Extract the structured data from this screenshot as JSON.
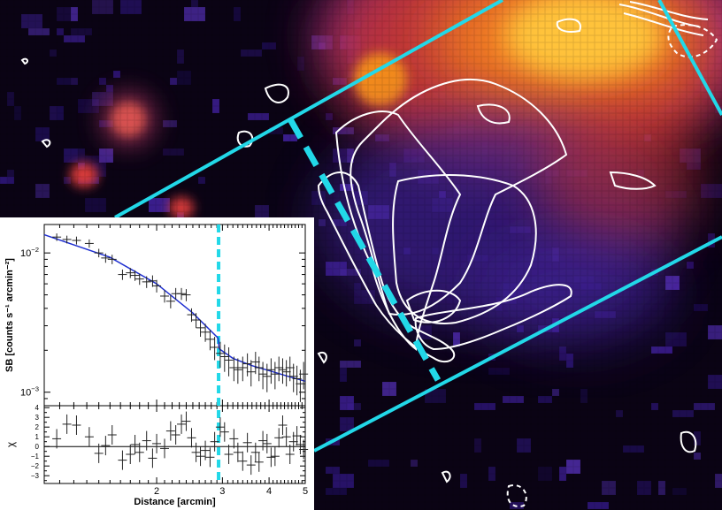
{
  "colors": {
    "accent": "#22d8e8",
    "model": "#1f2fd0",
    "data": "#222222"
  },
  "chart_data": {
    "type": "scatter",
    "image_background": "X-ray surface brightness map with radio contours and region overlay",
    "main_panel": {
      "ylabel": "SB [counts s⁻¹ arcmin⁻²]",
      "yscale": "log",
      "ylim": [
        0.0008,
        0.016
      ],
      "yticks": [
        {
          "value": 0.01,
          "label": "10⁻²"
        },
        {
          "value": 0.001,
          "label": "10⁻³"
        }
      ],
      "xlim": [
        1.0,
        5.0
      ],
      "edge_x": 2.93,
      "data": [
        {
          "x": 1.08,
          "y": 0.013,
          "e": 0.0008
        },
        {
          "x": 1.15,
          "y": 0.0125,
          "e": 0.0008
        },
        {
          "x": 1.22,
          "y": 0.0123,
          "e": 0.0008
        },
        {
          "x": 1.32,
          "y": 0.0117,
          "e": 0.0008
        },
        {
          "x": 1.4,
          "y": 0.01,
          "e": 0.0007
        },
        {
          "x": 1.46,
          "y": 0.0092,
          "e": 0.0007
        },
        {
          "x": 1.52,
          "y": 0.009,
          "e": 0.0007
        },
        {
          "x": 1.62,
          "y": 0.007,
          "e": 0.0006
        },
        {
          "x": 1.7,
          "y": 0.0072,
          "e": 0.0006
        },
        {
          "x": 1.75,
          "y": 0.0069,
          "e": 0.0006
        },
        {
          "x": 1.8,
          "y": 0.0065,
          "e": 0.0006
        },
        {
          "x": 1.88,
          "y": 0.0062,
          "e": 0.0006
        },
        {
          "x": 1.95,
          "y": 0.0063,
          "e": 0.0006
        },
        {
          "x": 2.0,
          "y": 0.0058,
          "e": 0.0006
        },
        {
          "x": 2.1,
          "y": 0.0049,
          "e": 0.0005
        },
        {
          "x": 2.18,
          "y": 0.0045,
          "e": 0.0005
        },
        {
          "x": 2.25,
          "y": 0.0051,
          "e": 0.0005
        },
        {
          "x": 2.33,
          "y": 0.0051,
          "e": 0.0005
        },
        {
          "x": 2.4,
          "y": 0.005,
          "e": 0.0005
        },
        {
          "x": 2.48,
          "y": 0.0036,
          "e": 0.0004
        },
        {
          "x": 2.55,
          "y": 0.0033,
          "e": 0.0004
        },
        {
          "x": 2.62,
          "y": 0.0029,
          "e": 0.0004
        },
        {
          "x": 2.7,
          "y": 0.0027,
          "e": 0.0004
        },
        {
          "x": 2.78,
          "y": 0.0024,
          "e": 0.0004
        },
        {
          "x": 2.86,
          "y": 0.0021,
          "e": 0.0004
        },
        {
          "x": 2.96,
          "y": 0.0019,
          "e": 0.0004
        },
        {
          "x": 3.04,
          "y": 0.0018,
          "e": 0.0004
        },
        {
          "x": 3.12,
          "y": 0.0017,
          "e": 0.0004
        },
        {
          "x": 3.22,
          "y": 0.0015,
          "e": 0.0003
        },
        {
          "x": 3.3,
          "y": 0.00145,
          "e": 0.0003
        },
        {
          "x": 3.4,
          "y": 0.0015,
          "e": 0.0003
        },
        {
          "x": 3.5,
          "y": 0.0016,
          "e": 0.0003
        },
        {
          "x": 3.58,
          "y": 0.0014,
          "e": 0.0003
        },
        {
          "x": 3.68,
          "y": 0.00165,
          "e": 0.0003
        },
        {
          "x": 3.76,
          "y": 0.0015,
          "e": 0.0003
        },
        {
          "x": 3.85,
          "y": 0.00135,
          "e": 0.0003
        },
        {
          "x": 3.95,
          "y": 0.0013,
          "e": 0.0003
        },
        {
          "x": 4.05,
          "y": 0.00145,
          "e": 0.0003
        },
        {
          "x": 4.15,
          "y": 0.00135,
          "e": 0.0003
        },
        {
          "x": 4.25,
          "y": 0.0015,
          "e": 0.0003
        },
        {
          "x": 4.35,
          "y": 0.00145,
          "e": 0.0003
        },
        {
          "x": 4.45,
          "y": 0.0014,
          "e": 0.0003
        },
        {
          "x": 4.55,
          "y": 0.0015,
          "e": 0.0003
        },
        {
          "x": 4.65,
          "y": 0.0013,
          "e": 0.0003
        },
        {
          "x": 4.75,
          "y": 0.00125,
          "e": 0.0003
        },
        {
          "x": 4.85,
          "y": 0.00115,
          "e": 0.0003
        },
        {
          "x": 4.95,
          "y": 0.00135,
          "e": 0.0003
        }
      ],
      "model": [
        {
          "x": 1.0,
          "y": 0.0135
        },
        {
          "x": 1.5,
          "y": 0.0093
        },
        {
          "x": 2.0,
          "y": 0.006
        },
        {
          "x": 2.5,
          "y": 0.0037
        },
        {
          "x": 2.92,
          "y": 0.00245
        },
        {
          "x": 2.94,
          "y": 0.00205
        },
        {
          "x": 3.2,
          "y": 0.00175
        },
        {
          "x": 3.6,
          "y": 0.00155
        },
        {
          "x": 4.0,
          "y": 0.00143
        },
        {
          "x": 4.5,
          "y": 0.0013
        },
        {
          "x": 5.0,
          "y": 0.0012
        }
      ]
    },
    "residual_panel": {
      "ylabel": "χ",
      "ylim": [
        -3.8,
        4.2
      ],
      "yticks": [
        {
          "value": 4,
          "label": "4"
        },
        {
          "value": 3,
          "label": "3"
        },
        {
          "value": 2,
          "label": "2"
        },
        {
          "value": 1,
          "label": "1"
        },
        {
          "value": 0,
          "label": "0"
        },
        {
          "value": -1,
          "label": "−1"
        },
        {
          "value": -2,
          "label": "−2"
        },
        {
          "value": -3,
          "label": "−3"
        }
      ],
      "xlabel": "Distance [arcmin]",
      "xticks": [
        {
          "value": 2,
          "label": "2"
        },
        {
          "value": 3,
          "label": "3"
        },
        {
          "value": 4,
          "label": "4"
        },
        {
          "value": 5,
          "label": "5"
        }
      ],
      "residuals": [
        {
          "x": 1.08,
          "y": 0.8
        },
        {
          "x": 1.15,
          "y": 2.3
        },
        {
          "x": 1.22,
          "y": 2.2
        },
        {
          "x": 1.32,
          "y": 1.0
        },
        {
          "x": 1.4,
          "y": -0.7
        },
        {
          "x": 1.46,
          "y": 0.1
        },
        {
          "x": 1.52,
          "y": 1.2
        },
        {
          "x": 1.62,
          "y": -1.4
        },
        {
          "x": 1.7,
          "y": -0.8
        },
        {
          "x": 1.75,
          "y": 0.2
        },
        {
          "x": 1.8,
          "y": -0.6
        },
        {
          "x": 1.88,
          "y": 0.6
        },
        {
          "x": 1.95,
          "y": -1.2
        },
        {
          "x": 2.0,
          "y": 0.3
        },
        {
          "x": 2.1,
          "y": -0.2
        },
        {
          "x": 2.18,
          "y": 1.6
        },
        {
          "x": 2.25,
          "y": 1.2
        },
        {
          "x": 2.33,
          "y": 2.3
        },
        {
          "x": 2.4,
          "y": 2.6
        },
        {
          "x": 2.48,
          "y": 0.9
        },
        {
          "x": 2.55,
          "y": -0.6
        },
        {
          "x": 2.62,
          "y": -1.0
        },
        {
          "x": 2.7,
          "y": -0.4
        },
        {
          "x": 2.78,
          "y": -1.1
        },
        {
          "x": 2.86,
          "y": 0.5
        },
        {
          "x": 2.96,
          "y": 2.0
        },
        {
          "x": 3.04,
          "y": 1.5
        },
        {
          "x": 3.12,
          "y": -0.8
        },
        {
          "x": 3.22,
          "y": 0.8
        },
        {
          "x": 3.3,
          "y": -0.6
        },
        {
          "x": 3.4,
          "y": -1.5
        },
        {
          "x": 3.5,
          "y": 0.4
        },
        {
          "x": 3.58,
          "y": -1.9
        },
        {
          "x": 3.68,
          "y": -0.6
        },
        {
          "x": 3.76,
          "y": -1.6
        },
        {
          "x": 3.85,
          "y": 0.6
        },
        {
          "x": 3.95,
          "y": 0.3
        },
        {
          "x": 4.05,
          "y": -1.1
        },
        {
          "x": 4.15,
          "y": -1.0
        },
        {
          "x": 4.25,
          "y": 0.9
        },
        {
          "x": 4.35,
          "y": 2.2
        },
        {
          "x": 4.45,
          "y": 1.0
        },
        {
          "x": 4.55,
          "y": -0.8
        },
        {
          "x": 4.65,
          "y": 0.5
        },
        {
          "x": 4.75,
          "y": 1.1
        },
        {
          "x": 4.85,
          "y": 0.2
        },
        {
          "x": 4.95,
          "y": -0.3
        }
      ]
    }
  }
}
